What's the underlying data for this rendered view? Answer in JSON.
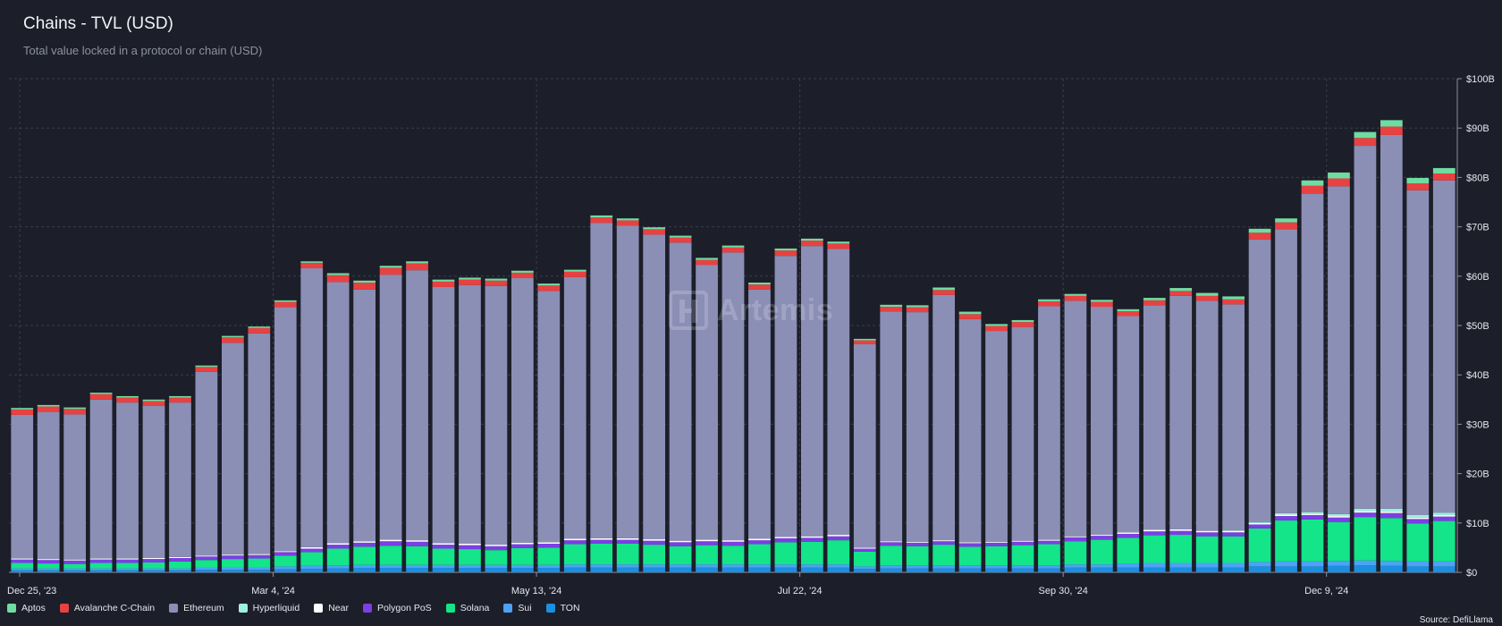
{
  "header": {
    "title": "Chains - TVL (USD)",
    "subtitle": "Total value locked in a protocol or chain (USD)"
  },
  "watermark": {
    "text": "Artemis",
    "icon": "artemis-logo-icon"
  },
  "footer": {
    "source": "Source: DefiLlama"
  },
  "chart_data": {
    "type": "bar",
    "stacked": true,
    "grid": true,
    "legend_position": "bottom-left",
    "ylim": [
      0,
      100
    ],
    "unit": "B USD",
    "y_ticks": [
      "$0",
      "$10B",
      "$20B",
      "$30B",
      "$40B",
      "$50B",
      "$60B",
      "$70B",
      "$80B",
      "$90B",
      "$100B"
    ],
    "x_ticks": [
      {
        "index": 0,
        "label": "Dec 25, '23"
      },
      {
        "index": 10,
        "label": "Mar 4, '24"
      },
      {
        "index": 20,
        "label": "May 13, '24"
      },
      {
        "index": 30,
        "label": "Jul 22, '24"
      },
      {
        "index": 40,
        "label": "Sep 30, '24"
      },
      {
        "index": 50,
        "label": "Dec 9, '24"
      }
    ],
    "series": [
      {
        "name": "TON",
        "color": "#1b8fe0",
        "values": [
          0.4,
          0.4,
          0.4,
          0.4,
          0.4,
          0.4,
          0.4,
          0.5,
          0.5,
          0.5,
          0.6,
          0.7,
          0.8,
          0.9,
          0.9,
          0.9,
          0.9,
          0.9,
          0.9,
          0.9,
          0.9,
          1.0,
          1.0,
          1.0,
          1.0,
          1.0,
          1.0,
          1.0,
          1.0,
          1.0,
          1.0,
          1.0,
          0.7,
          0.8,
          0.8,
          0.8,
          0.8,
          0.8,
          0.8,
          0.8,
          1.0,
          1.0,
          1.0,
          1.0,
          1.0,
          1.0,
          1.0,
          1.2,
          1.2,
          1.2,
          1.3,
          1.4,
          1.3,
          1.2,
          1.2
        ]
      },
      {
        "name": "Sui",
        "color": "#4da2f5",
        "values": [
          0.4,
          0.4,
          0.4,
          0.4,
          0.4,
          0.4,
          0.4,
          0.5,
          0.5,
          0.5,
          0.6,
          0.6,
          0.6,
          0.6,
          0.6,
          0.6,
          0.6,
          0.6,
          0.6,
          0.6,
          0.6,
          0.6,
          0.6,
          0.6,
          0.6,
          0.6,
          0.6,
          0.6,
          0.6,
          0.6,
          0.6,
          0.6,
          0.5,
          0.6,
          0.6,
          0.6,
          0.6,
          0.6,
          0.6,
          0.6,
          0.6,
          0.6,
          0.8,
          0.9,
          0.9,
          0.9,
          0.9,
          0.9,
          1.0,
          1.0,
          1.0,
          1.0,
          1.0,
          1.0,
          1.0
        ]
      },
      {
        "name": "Solana",
        "color": "#13e588",
        "values": [
          1.1,
          1.0,
          0.9,
          1.1,
          1.1,
          1.2,
          1.4,
          1.5,
          1.7,
          1.8,
          2.2,
          2.8,
          3.4,
          3.7,
          3.9,
          3.8,
          3.3,
          3.2,
          3.0,
          3.4,
          3.5,
          4.1,
          4.2,
          4.2,
          4.0,
          3.7,
          3.9,
          3.8,
          4.1,
          4.5,
          4.6,
          4.9,
          3.0,
          4.0,
          3.9,
          4.2,
          3.8,
          3.9,
          4.1,
          4.3,
          4.7,
          5.0,
          5.2,
          5.6,
          5.7,
          5.4,
          5.4,
          6.8,
          8.3,
          8.5,
          7.9,
          8.8,
          8.7,
          7.7,
          8.2
        ]
      },
      {
        "name": "Polygon PoS",
        "color": "#7b3fe4",
        "values": [
          0.7,
          0.7,
          0.7,
          0.7,
          0.7,
          0.7,
          0.7,
          0.7,
          0.7,
          0.7,
          0.7,
          0.7,
          0.8,
          0.8,
          0.9,
          0.9,
          0.8,
          0.8,
          0.8,
          0.8,
          0.8,
          0.8,
          0.8,
          0.8,
          0.8,
          0.8,
          0.8,
          0.8,
          0.8,
          0.8,
          0.8,
          0.8,
          0.6,
          0.7,
          0.7,
          0.7,
          0.7,
          0.7,
          0.7,
          0.7,
          0.8,
          0.8,
          0.8,
          0.8,
          0.8,
          0.8,
          0.8,
          0.8,
          0.9,
          0.9,
          0.9,
          0.9,
          1.0,
          0.9,
          0.9
        ]
      },
      {
        "name": "Near",
        "color": "#ffffff",
        "values": [
          0.2,
          0.2,
          0.2,
          0.2,
          0.2,
          0.2,
          0.2,
          0.2,
          0.2,
          0.2,
          0.2,
          0.3,
          0.3,
          0.3,
          0.3,
          0.3,
          0.3,
          0.3,
          0.3,
          0.3,
          0.3,
          0.3,
          0.3,
          0.3,
          0.3,
          0.3,
          0.3,
          0.3,
          0.3,
          0.3,
          0.3,
          0.3,
          0.2,
          0.2,
          0.2,
          0.2,
          0.2,
          0.2,
          0.2,
          0.2,
          0.2,
          0.2,
          0.3,
          0.3,
          0.3,
          0.3,
          0.3,
          0.3,
          0.3,
          0.3,
          0.3,
          0.3,
          0.3,
          0.3,
          0.3
        ]
      },
      {
        "name": "Hyperliquid",
        "color": "#9ef0e0",
        "values": [
          0,
          0,
          0,
          0,
          0,
          0,
          0,
          0,
          0,
          0,
          0,
          0,
          0,
          0,
          0,
          0,
          0,
          0,
          0,
          0,
          0,
          0,
          0,
          0,
          0,
          0,
          0,
          0,
          0,
          0,
          0,
          0,
          0,
          0,
          0,
          0,
          0,
          0,
          0,
          0,
          0,
          0,
          0,
          0,
          0,
          0,
          0.1,
          0.2,
          0.3,
          0.3,
          0.4,
          0.5,
          0.6,
          0.5,
          0.5
        ]
      },
      {
        "name": "Ethereum",
        "color": "#8b8fb5",
        "values": [
          29.1,
          29.8,
          29.4,
          32.2,
          31.6,
          30.8,
          31.3,
          37.2,
          42.9,
          44.7,
          49.4,
          56.5,
          52.9,
          51.0,
          53.7,
          54.7,
          51.9,
          52.4,
          52.4,
          53.6,
          50.9,
          53.0,
          63.9,
          63.3,
          61.7,
          60.4,
          55.7,
          58.3,
          50.5,
          56.9,
          58.8,
          57.9,
          41.2,
          46.5,
          46.5,
          49.7,
          45.2,
          42.7,
          43.3,
          47.3,
          47.7,
          46.2,
          43.8,
          45.5,
          47.3,
          46.6,
          45.8,
          57.2,
          57.5,
          64.5,
          66.4,
          73.5,
          75.7,
          65.8,
          67.3
        ]
      },
      {
        "name": "Avalanche C-Chain",
        "color": "#e84142",
        "values": [
          1.1,
          1.1,
          1.1,
          1.1,
          1.0,
          1.0,
          1.0,
          1.0,
          1.1,
          1.1,
          1.1,
          1.1,
          1.4,
          1.4,
          1.4,
          1.4,
          1.1,
          1.1,
          1.1,
          1.1,
          1.1,
          1.1,
          1.1,
          1.1,
          1.1,
          1.0,
          1.0,
          1.0,
          1.0,
          1.1,
          1.1,
          1.1,
          0.8,
          1.0,
          1.0,
          1.0,
          1.0,
          1.0,
          1.0,
          1.0,
          1.0,
          1.0,
          1.0,
          1.0,
          1.0,
          1.0,
          1.0,
          1.4,
          1.4,
          1.6,
          1.6,
          1.6,
          1.7,
          1.4,
          1.4
        ]
      },
      {
        "name": "Aptos",
        "color": "#6fdca1",
        "values": [
          0.3,
          0.3,
          0.3,
          0.3,
          0.3,
          0.3,
          0.3,
          0.3,
          0.3,
          0.3,
          0.3,
          0.3,
          0.4,
          0.4,
          0.4,
          0.4,
          0.4,
          0.4,
          0.4,
          0.4,
          0.4,
          0.4,
          0.4,
          0.4,
          0.4,
          0.4,
          0.4,
          0.4,
          0.4,
          0.4,
          0.4,
          0.4,
          0.3,
          0.4,
          0.4,
          0.5,
          0.5,
          0.4,
          0.4,
          0.4,
          0.4,
          0.4,
          0.4,
          0.5,
          0.6,
          0.6,
          0.6,
          0.8,
          0.8,
          1.1,
          1.2,
          1.2,
          1.3,
          1.1,
          1.1
        ]
      }
    ],
    "legend": [
      {
        "name": "Aptos",
        "color": "#6fdca1"
      },
      {
        "name": "Avalanche C-Chain",
        "color": "#e84142"
      },
      {
        "name": "Ethereum",
        "color": "#8b8fb5"
      },
      {
        "name": "Hyperliquid",
        "color": "#9ef0e0"
      },
      {
        "name": "Near",
        "color": "#ffffff"
      },
      {
        "name": "Polygon PoS",
        "color": "#7b3fe4"
      },
      {
        "name": "Solana",
        "color": "#13e588"
      },
      {
        "name": "Sui",
        "color": "#4da2f5"
      },
      {
        "name": "TON",
        "color": "#1b8fe0"
      }
    ]
  }
}
